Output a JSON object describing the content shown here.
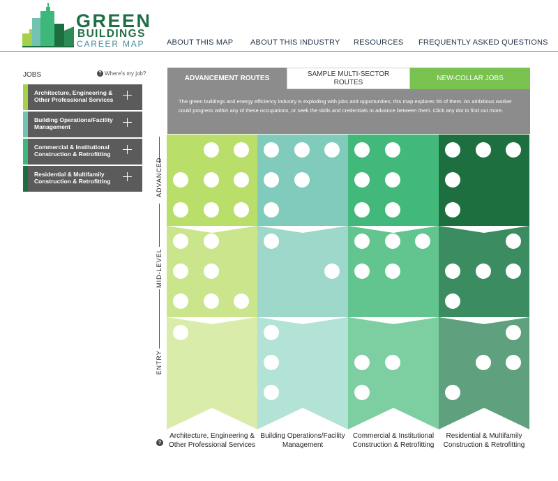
{
  "logo": {
    "line1": "GREEN",
    "line2": "BUILDINGS",
    "line3": "CAREER MAP"
  },
  "nav": [
    "ABOUT THIS MAP",
    "ABOUT THIS INDUSTRY",
    "RESOURCES",
    "FREQUENTLY ASKED QUESTIONS"
  ],
  "sidebar": {
    "title": "JOBS",
    "help_link": "Where's my job?",
    "items": [
      {
        "label": "Architecture, Engineering & Other Professional Services",
        "color": "#a6cf4a"
      },
      {
        "label": "Building Operations/Facility Management",
        "color": "#72c2b2"
      },
      {
        "label": "Commercial & Institutional Construction & Retrofitting",
        "color": "#3db87a"
      },
      {
        "label": "Residential & Multifamily Construction & Retrofitting",
        "color": "#1c6e3e"
      }
    ]
  },
  "tabs": {
    "advancement": "ADVANCEMENT ROUTES",
    "sample": "SAMPLE MULTI-SECTOR ROUTES",
    "newcollar": "NEW-COLLAR JOBS"
  },
  "intro": {
    "part1": "The green buildings and energy efficiency industry is exploding with jobs and opportunities; this map explores 55 of them. An ambitious worker could progress ",
    "em1": "within",
    "part2": " any of these occupations, or seek the skills and credentials to advance ",
    "em2": "between",
    "part3": " them. Click any dot to find out more."
  },
  "levels": [
    "ADVANCED",
    "MID-LEVEL",
    "ENTRY"
  ],
  "columns": [
    {
      "label": "Architecture, Engineering & Other Professional Services",
      "colors": {
        "advanced": "#b9df6a",
        "mid": "#cae58c",
        "entry": "#d9ecaa"
      },
      "dots": {
        "advanced": [
          [
            0,
            1,
            1
          ],
          [
            1,
            1,
            1
          ],
          [
            1,
            1,
            1
          ]
        ],
        "mid": [
          [
            1,
            1,
            0
          ],
          [
            1,
            1,
            0
          ],
          [
            1,
            1,
            1
          ]
        ],
        "entry": [
          [
            1,
            0,
            0
          ],
          [
            0,
            0,
            0
          ],
          [
            0,
            0,
            0
          ]
        ]
      }
    },
    {
      "label": "Building Operations/Facility Management",
      "colors": {
        "advanced": "#80cbbb",
        "mid": "#9dd8ca",
        "entry": "#b3e2d7"
      },
      "dots": {
        "advanced": [
          [
            1,
            1,
            1
          ],
          [
            1,
            1,
            0
          ],
          [
            1,
            0,
            0
          ]
        ],
        "mid": [
          [
            1,
            0,
            0
          ],
          [
            0,
            0,
            1
          ],
          [
            0,
            0,
            0
          ]
        ],
        "entry": [
          [
            1,
            0,
            0
          ],
          [
            1,
            0,
            0
          ],
          [
            1,
            0,
            0
          ]
        ]
      }
    },
    {
      "label": "Commercial & Institutional Construction & Retrofitting",
      "colors": {
        "advanced": "#42b97a",
        "mid": "#62c48e",
        "entry": "#7dcfa2"
      },
      "dots": {
        "advanced": [
          [
            1,
            1,
            0
          ],
          [
            1,
            1,
            0
          ],
          [
            1,
            1,
            0
          ]
        ],
        "mid": [
          [
            1,
            1,
            1
          ],
          [
            1,
            1,
            0
          ],
          [
            0,
            0,
            0
          ]
        ],
        "entry": [
          [
            0,
            0,
            0
          ],
          [
            1,
            1,
            0
          ],
          [
            1,
            0,
            0
          ]
        ]
      }
    },
    {
      "label": "Residential & Multifamily Construction & Retrofitting",
      "colors": {
        "advanced": "#1e6f3f",
        "mid": "#3c8c62",
        "entry": "#5fa07f"
      },
      "dots": {
        "advanced": [
          [
            1,
            1,
            1
          ],
          [
            1,
            0,
            0
          ],
          [
            1,
            0,
            0
          ]
        ],
        "mid": [
          [
            0,
            0,
            1
          ],
          [
            1,
            1,
            1
          ],
          [
            1,
            0,
            0
          ]
        ],
        "entry": [
          [
            0,
            0,
            1
          ],
          [
            0,
            1,
            1
          ],
          [
            1,
            0,
            0
          ]
        ]
      }
    }
  ]
}
